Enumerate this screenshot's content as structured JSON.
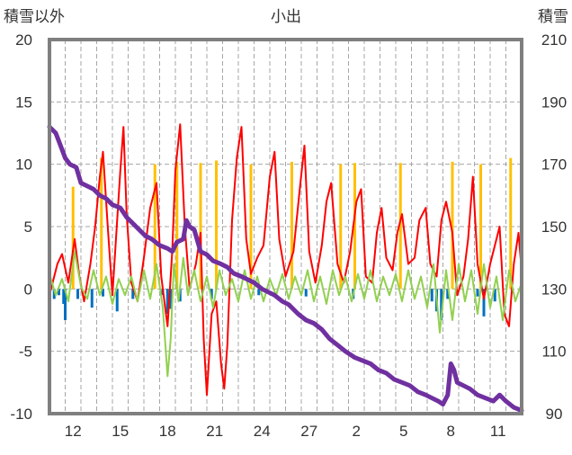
{
  "chart_data": {
    "type": "line",
    "title": "小出",
    "left_axis_label": "積雪以外",
    "right_axis_label": "積雪",
    "left_ylim": [
      -10,
      20
    ],
    "left_yticks": [
      -10,
      -5,
      0,
      5,
      10,
      15,
      20
    ],
    "right_ylim": [
      90,
      210
    ],
    "right_yticks": [
      90,
      110,
      130,
      150,
      170,
      190,
      210
    ],
    "x_tick_labels": [
      "12",
      "15",
      "18",
      "21",
      "24",
      "27",
      "2",
      "5",
      "8",
      "11"
    ],
    "x_tick_positions": [
      1.5,
      4.5,
      7.5,
      10.5,
      13.5,
      16.5,
      19.5,
      22.5,
      25.5,
      28.5
    ],
    "xlim": [
      0,
      30
    ],
    "grid": true,
    "series": [
      {
        "color": "#0070c0",
        "style": "bars",
        "points": [
          [
            0.3,
            -0.8
          ],
          [
            0.6,
            -0.5
          ],
          [
            0.9,
            -1.2
          ],
          [
            1.0,
            -2.5
          ],
          [
            1.8,
            -0.8
          ],
          [
            2.7,
            -1.5
          ],
          [
            3.4,
            -0.6
          ],
          [
            4.3,
            -1.8
          ],
          [
            5.3,
            -0.8
          ],
          [
            7.2,
            -0.5
          ],
          [
            7.5,
            -2.0
          ],
          [
            7.7,
            -1.6
          ],
          [
            8.3,
            -1.0
          ],
          [
            10.3,
            -0.8
          ],
          [
            13.3,
            -0.5
          ],
          [
            16.3,
            -0.6
          ],
          [
            19.3,
            -0.8
          ],
          [
            24.3,
            -1.0
          ],
          [
            24.6,
            -1.8
          ],
          [
            24.9,
            -2.5
          ],
          [
            25.3,
            -0.8
          ],
          [
            27.2,
            -0.6
          ],
          [
            27.6,
            -2.2
          ],
          [
            28.3,
            -1.0
          ]
        ]
      },
      {
        "color": "#ffc000",
        "style": "bars",
        "points": [
          [
            1.5,
            8.2
          ],
          [
            3.3,
            10.5
          ],
          [
            6.7,
            10.0
          ],
          [
            8.1,
            10.2
          ],
          [
            9.6,
            10.1
          ],
          [
            10.6,
            10.3
          ],
          [
            12.8,
            10.0
          ],
          [
            15.4,
            10.2
          ],
          [
            18.5,
            10.0
          ],
          [
            19.4,
            10.1
          ],
          [
            22.3,
            10.1
          ],
          [
            25.6,
            10.2
          ],
          [
            27.4,
            10.0
          ],
          [
            29.3,
            10.5
          ]
        ]
      },
      {
        "color": "#ff0000",
        "points": [
          [
            0,
            -0.5
          ],
          [
            0.5,
            2.0
          ],
          [
            0.8,
            2.8
          ],
          [
            1.2,
            0.5
          ],
          [
            1.6,
            4.0
          ],
          [
            1.9,
            1.0
          ],
          [
            2.2,
            -1.0
          ],
          [
            2.6,
            2.0
          ],
          [
            2.9,
            5.0
          ],
          [
            3.2,
            9.0
          ],
          [
            3.4,
            11.0
          ],
          [
            3.7,
            5.0
          ],
          [
            4.0,
            -0.5
          ],
          [
            4.2,
            3.5
          ],
          [
            4.5,
            9.5
          ],
          [
            4.7,
            13.0
          ],
          [
            4.9,
            6.0
          ],
          [
            5.2,
            0.5
          ],
          [
            5.6,
            -1.0
          ],
          [
            6.0,
            2.5
          ],
          [
            6.4,
            6.5
          ],
          [
            6.8,
            8.5
          ],
          [
            7.1,
            1.0
          ],
          [
            7.5,
            -3.0
          ],
          [
            7.8,
            3.0
          ],
          [
            8.0,
            9.5
          ],
          [
            8.3,
            13.2
          ],
          [
            8.6,
            5.0
          ],
          [
            8.9,
            0.0
          ],
          [
            9.3,
            2.0
          ],
          [
            9.6,
            4.5
          ],
          [
            9.8,
            -4.0
          ],
          [
            10.0,
            -8.5
          ],
          [
            10.3,
            -2.0
          ],
          [
            10.6,
            -1.0
          ],
          [
            10.9,
            -6.0
          ],
          [
            11.1,
            -8.0
          ],
          [
            11.3,
            -4.5
          ],
          [
            11.6,
            5.5
          ],
          [
            11.9,
            10.5
          ],
          [
            12.2,
            13.0
          ],
          [
            12.5,
            4.0
          ],
          [
            12.8,
            1.2
          ],
          [
            13.2,
            2.5
          ],
          [
            13.6,
            3.5
          ],
          [
            14.0,
            9.0
          ],
          [
            14.3,
            11.0
          ],
          [
            14.6,
            4.0
          ],
          [
            15.0,
            1.0
          ],
          [
            15.5,
            3.0
          ],
          [
            15.9,
            8.0
          ],
          [
            16.2,
            11.5
          ],
          [
            16.5,
            3.0
          ],
          [
            16.9,
            0.5
          ],
          [
            17.3,
            3.5
          ],
          [
            17.6,
            7.0
          ],
          [
            17.9,
            8.5
          ],
          [
            18.3,
            2.0
          ],
          [
            18.7,
            0.5
          ],
          [
            19.1,
            3.0
          ],
          [
            19.5,
            7.0
          ],
          [
            19.8,
            8.0
          ],
          [
            20.1,
            1.0
          ],
          [
            20.5,
            0.5
          ],
          [
            20.8,
            4.5
          ],
          [
            21.1,
            6.5
          ],
          [
            21.4,
            2.5
          ],
          [
            21.8,
            1.5
          ],
          [
            22.1,
            4.5
          ],
          [
            22.4,
            6.0
          ],
          [
            22.8,
            2.0
          ],
          [
            23.2,
            2.5
          ],
          [
            23.5,
            5.5
          ],
          [
            23.9,
            6.5
          ],
          [
            24.2,
            2.0
          ],
          [
            24.6,
            1.0
          ],
          [
            24.9,
            5.5
          ],
          [
            25.2,
            7.0
          ],
          [
            25.6,
            4.5
          ],
          [
            25.9,
            -0.5
          ],
          [
            26.3,
            1.0
          ],
          [
            26.6,
            4.0
          ],
          [
            26.9,
            9.0
          ],
          [
            27.2,
            2.0
          ],
          [
            27.6,
            -0.8
          ],
          [
            28.0,
            2.0
          ],
          [
            28.3,
            3.5
          ],
          [
            28.6,
            5.0
          ],
          [
            28.9,
            -2.0
          ],
          [
            29.2,
            -3.0
          ],
          [
            29.5,
            2.0
          ],
          [
            29.8,
            4.5
          ],
          [
            30.0,
            1.5
          ]
        ]
      },
      {
        "color": "#92d050",
        "points": [
          [
            0,
            1.2
          ],
          [
            0.4,
            -0.5
          ],
          [
            0.8,
            0.8
          ],
          [
            1.2,
            -1.0
          ],
          [
            1.6,
            3.0
          ],
          [
            2.0,
            0.2
          ],
          [
            2.4,
            -0.8
          ],
          [
            2.8,
            1.5
          ],
          [
            3.2,
            -0.5
          ],
          [
            3.6,
            1.0
          ],
          [
            4.0,
            -1.2
          ],
          [
            4.4,
            0.8
          ],
          [
            4.8,
            -0.5
          ],
          [
            5.2,
            1.0
          ],
          [
            5.6,
            -1.0
          ],
          [
            6.0,
            1.5
          ],
          [
            6.4,
            -0.8
          ],
          [
            6.8,
            2.0
          ],
          [
            7.2,
            -1.5
          ],
          [
            7.5,
            -7.0
          ],
          [
            7.7,
            -4.0
          ],
          [
            7.9,
            2.0
          ],
          [
            8.2,
            -1.0
          ],
          [
            8.5,
            2.5
          ],
          [
            8.8,
            -0.5
          ],
          [
            9.2,
            1.5
          ],
          [
            9.6,
            -1.0
          ],
          [
            10.0,
            1.0
          ],
          [
            10.4,
            -1.5
          ],
          [
            10.8,
            1.5
          ],
          [
            11.2,
            -0.5
          ],
          [
            11.6,
            0.8
          ],
          [
            12.0,
            -1.0
          ],
          [
            12.4,
            1.5
          ],
          [
            12.8,
            -0.8
          ],
          [
            13.2,
            1.0
          ],
          [
            13.6,
            -1.0
          ],
          [
            14.0,
            0.8
          ],
          [
            14.4,
            -0.5
          ],
          [
            14.8,
            1.2
          ],
          [
            15.2,
            -0.8
          ],
          [
            15.6,
            1.0
          ],
          [
            16.0,
            -0.5
          ],
          [
            16.4,
            1.5
          ],
          [
            16.8,
            -1.0
          ],
          [
            17.2,
            1.0
          ],
          [
            17.6,
            -1.2
          ],
          [
            18.0,
            1.5
          ],
          [
            18.4,
            -0.5
          ],
          [
            18.8,
            1.0
          ],
          [
            19.2,
            -1.0
          ],
          [
            19.6,
            1.2
          ],
          [
            20.0,
            -0.8
          ],
          [
            20.4,
            1.5
          ],
          [
            20.8,
            -1.0
          ],
          [
            21.2,
            1.0
          ],
          [
            21.6,
            -0.5
          ],
          [
            22.0,
            1.2
          ],
          [
            22.4,
            -1.0
          ],
          [
            22.8,
            1.5
          ],
          [
            23.2,
            -0.8
          ],
          [
            23.6,
            1.0
          ],
          [
            24.0,
            -1.5
          ],
          [
            24.4,
            2.0
          ],
          [
            24.8,
            -3.5
          ],
          [
            25.2,
            1.5
          ],
          [
            25.6,
            -2.5
          ],
          [
            26.0,
            2.0
          ],
          [
            26.4,
            -1.0
          ],
          [
            26.8,
            1.5
          ],
          [
            27.2,
            -2.0
          ],
          [
            27.6,
            2.0
          ],
          [
            28.0,
            -1.5
          ],
          [
            28.4,
            1.0
          ],
          [
            28.8,
            -2.5
          ],
          [
            29.2,
            1.5
          ],
          [
            29.6,
            -1.0
          ],
          [
            30.0,
            0.5
          ]
        ]
      },
      {
        "color": "#7030a0",
        "axis": "right",
        "points": [
          [
            0,
            182
          ],
          [
            0.4,
            180
          ],
          [
            0.7,
            176
          ],
          [
            1.0,
            172
          ],
          [
            1.3,
            170
          ],
          [
            1.7,
            169
          ],
          [
            2.0,
            164
          ],
          [
            2.4,
            163
          ],
          [
            2.8,
            162
          ],
          [
            3.2,
            160
          ],
          [
            3.6,
            159
          ],
          [
            4.0,
            157
          ],
          [
            4.5,
            156
          ],
          [
            4.9,
            153
          ],
          [
            5.3,
            151
          ],
          [
            5.7,
            149
          ],
          [
            6.1,
            147
          ],
          [
            6.5,
            146
          ],
          [
            7.0,
            144
          ],
          [
            7.5,
            143
          ],
          [
            7.8,
            142
          ],
          [
            8.1,
            145
          ],
          [
            8.5,
            146
          ],
          [
            8.7,
            152
          ],
          [
            8.9,
            150
          ],
          [
            9.2,
            149
          ],
          [
            9.6,
            142
          ],
          [
            10.0,
            141
          ],
          [
            10.4,
            139
          ],
          [
            10.9,
            138
          ],
          [
            11.3,
            137
          ],
          [
            11.7,
            135
          ],
          [
            12.2,
            134
          ],
          [
            12.6,
            133
          ],
          [
            13.0,
            132
          ],
          [
            13.5,
            130
          ],
          [
            13.9,
            129
          ],
          [
            14.3,
            128
          ],
          [
            14.8,
            126
          ],
          [
            15.2,
            125
          ],
          [
            15.8,
            122
          ],
          [
            16.3,
            120
          ],
          [
            16.8,
            119
          ],
          [
            17.3,
            117
          ],
          [
            17.8,
            114
          ],
          [
            18.3,
            112
          ],
          [
            18.8,
            110
          ],
          [
            19.4,
            108
          ],
          [
            19.9,
            107
          ],
          [
            20.4,
            106
          ],
          [
            20.9,
            104
          ],
          [
            21.4,
            103
          ],
          [
            21.9,
            101
          ],
          [
            22.4,
            100
          ],
          [
            22.9,
            99
          ],
          [
            23.4,
            97
          ],
          [
            23.9,
            96
          ],
          [
            24.3,
            95
          ],
          [
            24.7,
            94
          ],
          [
            25.0,
            93
          ],
          [
            25.3,
            96
          ],
          [
            25.5,
            106
          ],
          [
            25.7,
            104
          ],
          [
            25.9,
            100
          ],
          [
            26.3,
            99
          ],
          [
            26.7,
            98
          ],
          [
            27.2,
            96
          ],
          [
            27.7,
            95
          ],
          [
            28.2,
            94
          ],
          [
            28.6,
            96
          ],
          [
            29.0,
            94
          ],
          [
            29.5,
            92
          ],
          [
            30.0,
            91
          ]
        ]
      }
    ]
  }
}
